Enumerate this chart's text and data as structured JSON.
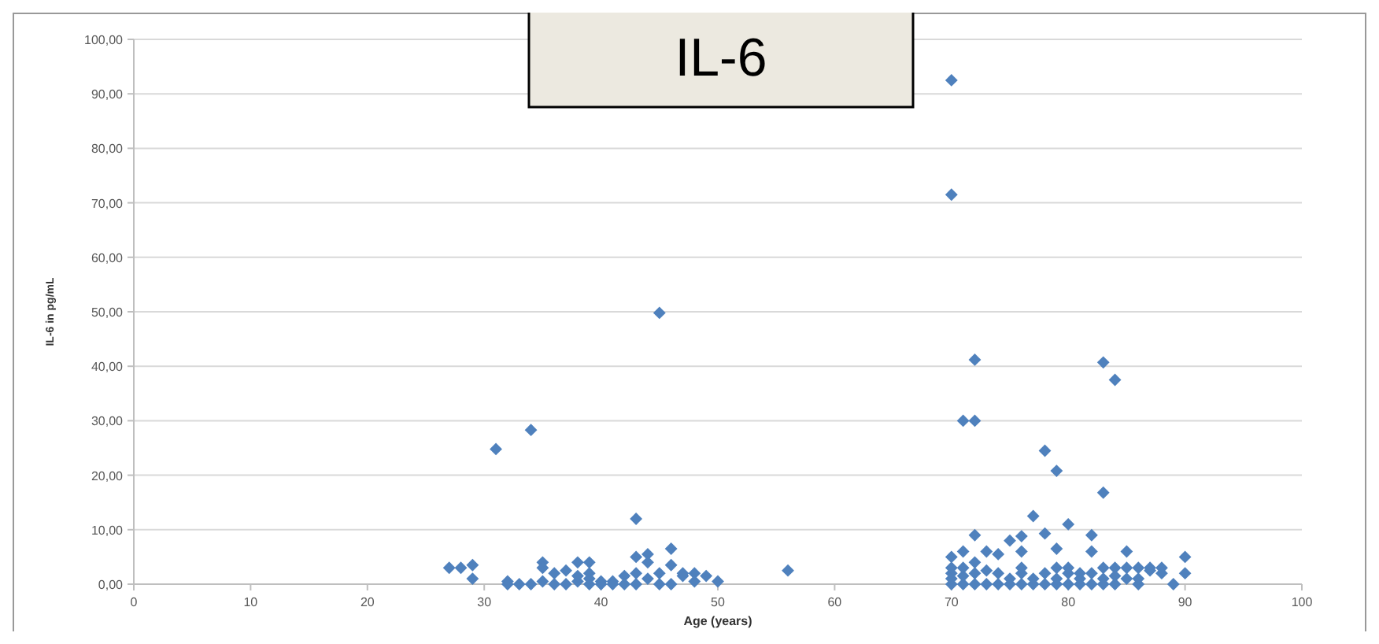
{
  "chart_data": {
    "type": "scatter",
    "title": "IL-6",
    "xlabel": "Age (years)",
    "ylabel": "IL-6 in pg/mL",
    "marker": "diamond",
    "grid": "y",
    "xlim": [
      0,
      100
    ],
    "xticks": [
      0,
      10,
      20,
      30,
      40,
      50,
      60,
      70,
      80,
      90,
      100
    ],
    "ylim": [
      0,
      100
    ],
    "yticks": [
      {
        "value": 0,
        "label": "0,00"
      },
      {
        "value": 10,
        "label": "10,00"
      },
      {
        "value": 20,
        "label": "20,00"
      },
      {
        "value": 30,
        "label": "30,00"
      },
      {
        "value": 40,
        "label": "40,00"
      },
      {
        "value": 50,
        "label": "50,00"
      },
      {
        "value": 60,
        "label": "60,00"
      },
      {
        "value": 70,
        "label": "70,00"
      },
      {
        "value": 80,
        "label": "80,00"
      },
      {
        "value": 90,
        "label": "90,00"
      },
      {
        "value": 100,
        "label": "100,00"
      }
    ],
    "series": [
      {
        "color": "#4f81bd",
        "x": [
          27,
          28,
          29,
          29,
          31,
          34,
          32,
          32,
          33,
          34,
          35,
          35,
          35,
          36,
          36,
          37,
          37,
          38,
          38,
          38,
          39,
          39,
          39,
          39,
          40,
          40,
          41,
          41,
          42,
          42,
          43,
          43,
          43,
          43,
          44,
          44,
          44,
          45,
          45,
          45,
          46,
          46,
          46,
          47,
          47,
          48,
          48,
          49,
          50,
          56,
          70,
          70,
          71,
          72,
          72,
          78,
          79,
          83,
          84,
          83,
          77,
          80,
          78,
          72,
          82,
          76,
          75,
          73,
          71,
          70,
          74,
          76,
          79,
          82,
          85,
          90,
          90,
          89,
          86,
          88,
          87,
          84,
          85,
          86,
          80,
          81,
          83,
          70,
          70,
          70,
          70,
          71,
          71,
          71,
          72,
          72,
          72,
          73,
          73,
          74,
          74,
          75,
          75,
          76,
          76,
          76,
          77,
          77,
          78,
          78,
          79,
          79,
          79,
          80,
          80,
          81,
          81,
          82,
          82,
          83,
          83,
          84,
          84,
          85,
          86,
          87,
          88
        ],
        "values": [
          3,
          3,
          3.5,
          1,
          24.8,
          28.3,
          0.5,
          0,
          0,
          0,
          0.5,
          4,
          3,
          0,
          2,
          2.5,
          0,
          4,
          0.5,
          1.5,
          4,
          2,
          0,
          1,
          0.5,
          0,
          0.5,
          0,
          1.5,
          0,
          12,
          5,
          2,
          0,
          5.5,
          4,
          1,
          49.8,
          2,
          0,
          6.5,
          3.5,
          0,
          1.5,
          2,
          0.5,
          2,
          1.5,
          0.5,
          2.5,
          92.5,
          71.5,
          30,
          30,
          41.2,
          24.5,
          20.8,
          40.7,
          37.5,
          16.8,
          12.5,
          11,
          9.3,
          9,
          9,
          8.8,
          8,
          6,
          6,
          5,
          5.5,
          6,
          6.5,
          6,
          6,
          5,
          2,
          0,
          0,
          3,
          2.5,
          3,
          3,
          3,
          2,
          1,
          1,
          0,
          1,
          2,
          3,
          0,
          1.5,
          3,
          0,
          2,
          4,
          0,
          2.5,
          0,
          2,
          0,
          1,
          0,
          2,
          3,
          0,
          1,
          0,
          2,
          0,
          1,
          3,
          0,
          3,
          0,
          2,
          0,
          2,
          0,
          3,
          0,
          1.5,
          1,
          1,
          3,
          2
        ]
      }
    ]
  }
}
